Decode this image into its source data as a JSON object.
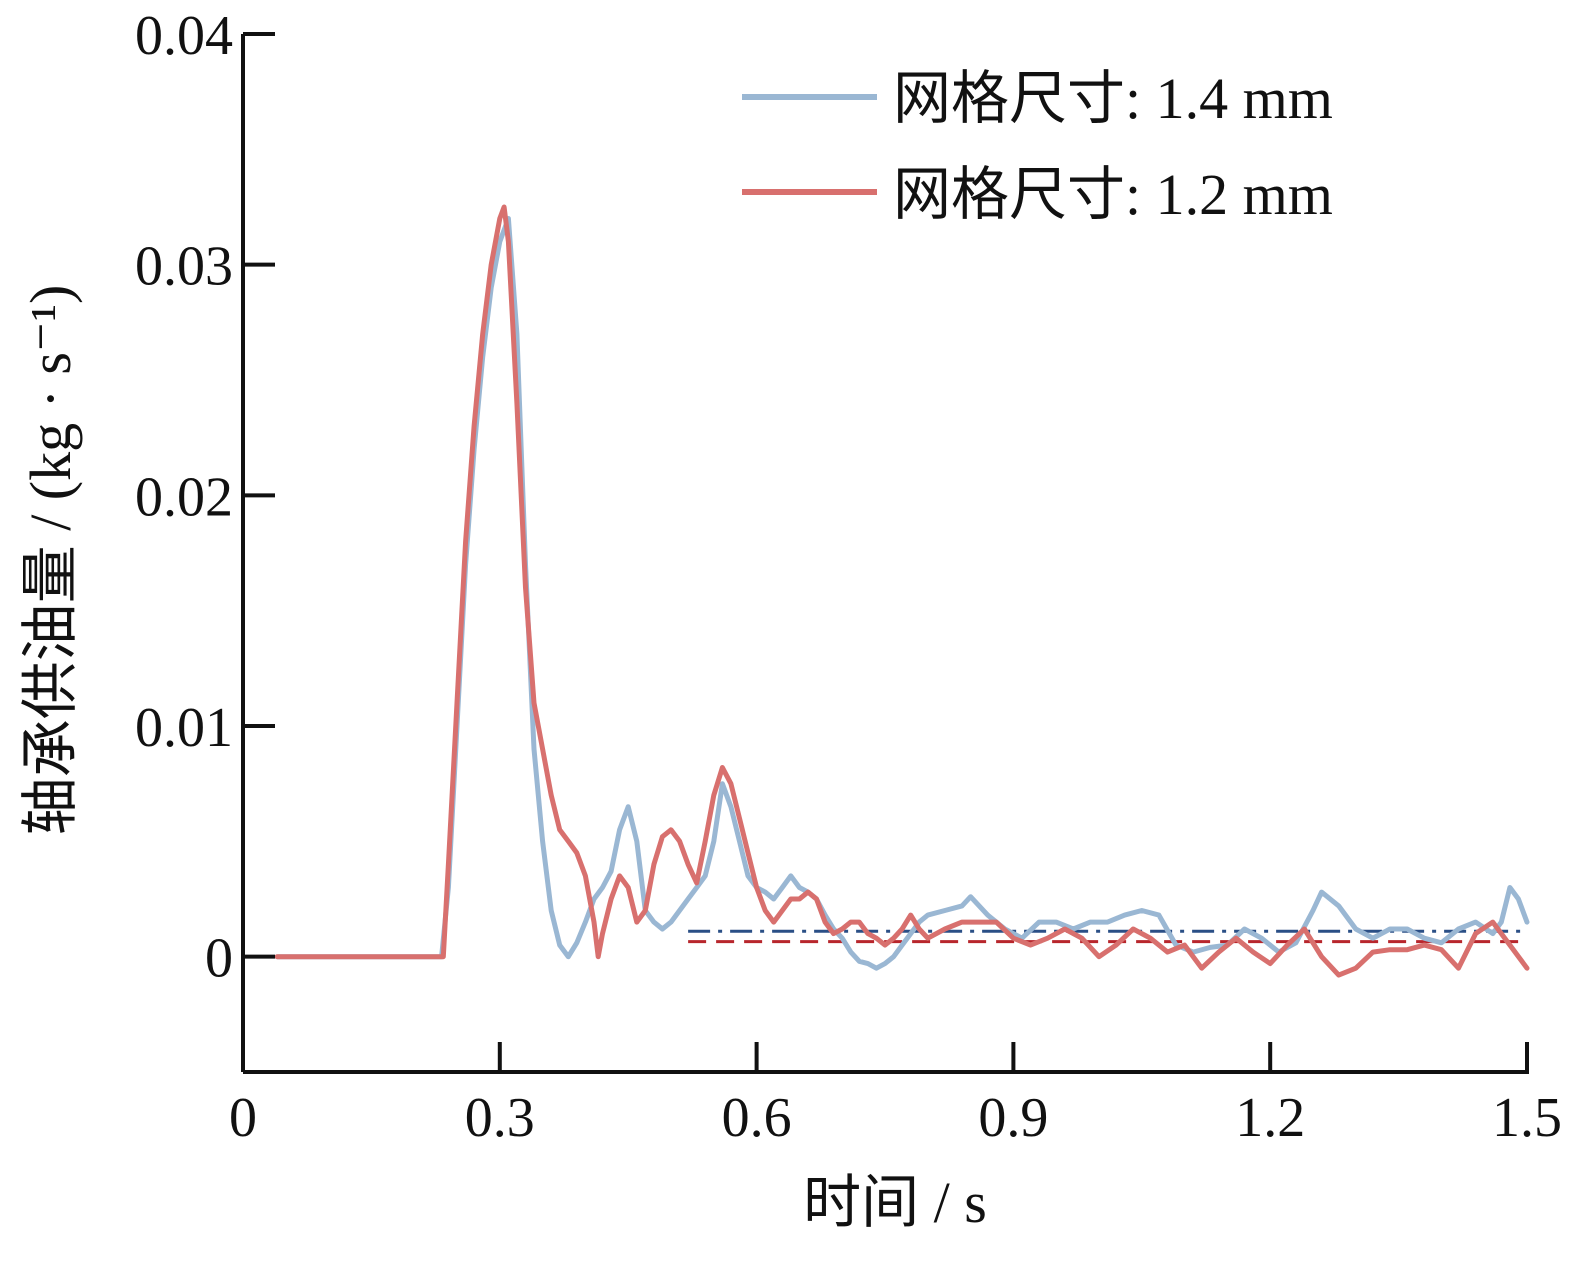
{
  "chart_data": {
    "type": "line",
    "title": "",
    "xlabel": "时间 / s",
    "ylabel": "轴承供油量 / (kg · s⁻¹)",
    "xlim": [
      0,
      1.5
    ],
    "ylim": [
      -0.005,
      0.04
    ],
    "xticks": [
      0,
      0.3,
      0.6,
      0.9,
      1.2,
      1.5
    ],
    "xtick_labels": [
      "0",
      "0.3",
      "0.6",
      "0.9",
      "1.2",
      "1.5"
    ],
    "yticks": [
      0,
      0.01,
      0.02,
      0.03,
      0.04
    ],
    "ytick_labels": [
      "0",
      "0.01",
      "0.02",
      "0.03",
      "0.04"
    ],
    "grid": false,
    "legend_position": "top-right",
    "series": [
      {
        "name": "网格尺寸: 1.4 mm",
        "color": "#9ab7d3",
        "x": [
          0.04,
          0.232,
          0.24,
          0.25,
          0.26,
          0.27,
          0.28,
          0.29,
          0.3,
          0.31,
          0.32,
          0.33,
          0.34,
          0.35,
          0.36,
          0.37,
          0.38,
          0.39,
          0.4,
          0.41,
          0.42,
          0.43,
          0.44,
          0.45,
          0.46,
          0.47,
          0.48,
          0.49,
          0.5,
          0.51,
          0.52,
          0.53,
          0.54,
          0.55,
          0.56,
          0.57,
          0.58,
          0.59,
          0.6,
          0.61,
          0.62,
          0.63,
          0.64,
          0.65,
          0.66,
          0.67,
          0.68,
          0.69,
          0.7,
          0.71,
          0.72,
          0.73,
          0.74,
          0.75,
          0.76,
          0.77,
          0.78,
          0.79,
          0.8,
          0.82,
          0.84,
          0.85,
          0.87,
          0.89,
          0.91,
          0.93,
          0.95,
          0.97,
          0.99,
          1.01,
          1.03,
          1.05,
          1.07,
          1.09,
          1.11,
          1.13,
          1.15,
          1.17,
          1.19,
          1.21,
          1.23,
          1.25,
          1.26,
          1.28,
          1.3,
          1.32,
          1.34,
          1.36,
          1.38,
          1.4,
          1.42,
          1.44,
          1.46,
          1.47,
          1.48,
          1.49,
          1.5
        ],
        "values": [
          0.0,
          0.0,
          0.003,
          0.01,
          0.017,
          0.022,
          0.026,
          0.029,
          0.031,
          0.032,
          0.027,
          0.017,
          0.009,
          0.005,
          0.002,
          0.0005,
          0.0,
          0.0006,
          0.0015,
          0.0025,
          0.003,
          0.0037,
          0.0055,
          0.0065,
          0.005,
          0.002,
          0.0015,
          0.0012,
          0.0015,
          0.002,
          0.0025,
          0.003,
          0.0035,
          0.005,
          0.0075,
          0.0065,
          0.005,
          0.0035,
          0.003,
          0.0028,
          0.0025,
          0.003,
          0.0035,
          0.003,
          0.0028,
          0.0025,
          0.0018,
          0.0012,
          0.0008,
          0.0002,
          -0.0002,
          -0.0003,
          -0.0005,
          -0.0003,
          0.0,
          0.0005,
          0.001,
          0.0015,
          0.0018,
          0.002,
          0.0022,
          0.0026,
          0.0018,
          0.0012,
          0.0008,
          0.0015,
          0.0015,
          0.0012,
          0.0015,
          0.0015,
          0.0018,
          0.002,
          0.0018,
          0.0005,
          0.0002,
          0.0004,
          0.0005,
          0.0012,
          0.0008,
          0.0002,
          0.0006,
          0.002,
          0.0028,
          0.0022,
          0.0012,
          0.0008,
          0.0012,
          0.0012,
          0.0008,
          0.0006,
          0.0012,
          0.0015,
          0.001,
          0.0015,
          0.003,
          0.0025,
          0.0015
        ]
      },
      {
        "name": "网格尺寸: 1.2 mm",
        "color": "#d8706e",
        "x": [
          0.04,
          0.234,
          0.24,
          0.25,
          0.26,
          0.27,
          0.28,
          0.29,
          0.3,
          0.305,
          0.31,
          0.32,
          0.33,
          0.34,
          0.35,
          0.36,
          0.37,
          0.38,
          0.39,
          0.4,
          0.41,
          0.415,
          0.42,
          0.43,
          0.44,
          0.45,
          0.46,
          0.47,
          0.48,
          0.49,
          0.5,
          0.51,
          0.52,
          0.53,
          0.54,
          0.55,
          0.56,
          0.57,
          0.58,
          0.59,
          0.6,
          0.61,
          0.62,
          0.63,
          0.64,
          0.65,
          0.66,
          0.67,
          0.68,
          0.69,
          0.7,
          0.71,
          0.72,
          0.73,
          0.74,
          0.75,
          0.76,
          0.77,
          0.78,
          0.79,
          0.8,
          0.82,
          0.84,
          0.86,
          0.88,
          0.9,
          0.92,
          0.94,
          0.96,
          0.98,
          1.0,
          1.02,
          1.04,
          1.06,
          1.08,
          1.1,
          1.12,
          1.14,
          1.16,
          1.18,
          1.2,
          1.22,
          1.24,
          1.26,
          1.28,
          1.3,
          1.32,
          1.34,
          1.36,
          1.38,
          1.4,
          1.42,
          1.44,
          1.46,
          1.48,
          1.5
        ],
        "values": [
          0.0,
          0.0,
          0.004,
          0.011,
          0.018,
          0.023,
          0.027,
          0.03,
          0.032,
          0.0325,
          0.031,
          0.024,
          0.016,
          0.011,
          0.009,
          0.007,
          0.0055,
          0.005,
          0.0045,
          0.0035,
          0.0015,
          0.0,
          0.001,
          0.0025,
          0.0035,
          0.003,
          0.0015,
          0.002,
          0.004,
          0.0052,
          0.0055,
          0.005,
          0.004,
          0.0032,
          0.005,
          0.007,
          0.0082,
          0.0075,
          0.006,
          0.0045,
          0.003,
          0.002,
          0.0015,
          0.002,
          0.0025,
          0.0025,
          0.0028,
          0.0025,
          0.0015,
          0.001,
          0.0012,
          0.0015,
          0.0015,
          0.001,
          0.0008,
          0.0005,
          0.0008,
          0.0012,
          0.0018,
          0.0012,
          0.0008,
          0.0012,
          0.0015,
          0.0015,
          0.0015,
          0.0008,
          0.0005,
          0.0008,
          0.0012,
          0.0008,
          0.0,
          0.0005,
          0.0012,
          0.0008,
          0.0002,
          0.0005,
          -0.0005,
          0.0002,
          0.0008,
          0.0002,
          -0.0003,
          0.0005,
          0.0012,
          0.0,
          -0.0008,
          -0.0005,
          0.0002,
          0.0003,
          0.0003,
          0.0005,
          0.0003,
          -0.0005,
          0.001,
          0.0015,
          0.0005,
          -0.0005
        ]
      }
    ],
    "reference_lines": [
      {
        "color": "#2a4f86",
        "style": "dash-dot",
        "y": 0.0011,
        "x_start": 0.52,
        "x_end": 1.5
      },
      {
        "color": "#b8262c",
        "style": "dashed",
        "y": 0.00065,
        "x_start": 0.52,
        "x_end": 1.5
      }
    ]
  }
}
